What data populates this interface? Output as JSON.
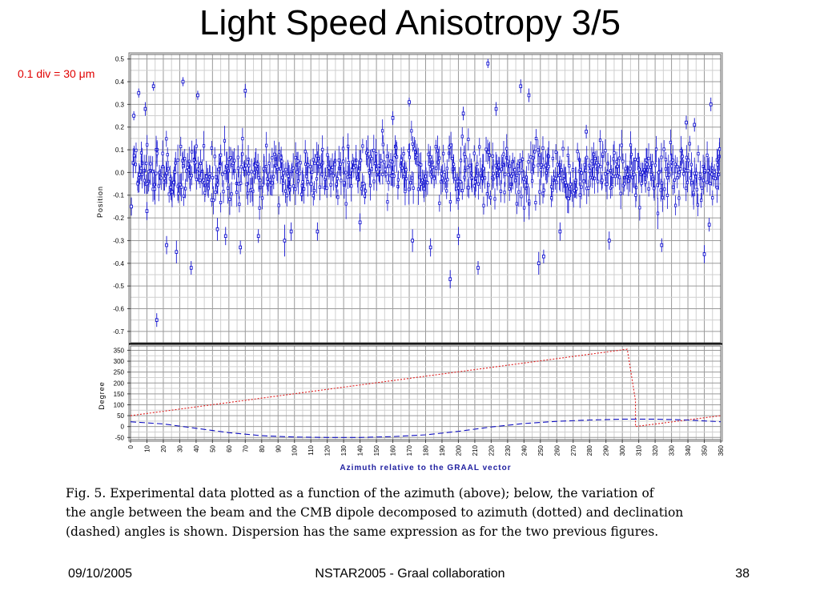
{
  "slide": {
    "title": "Light Speed Anisotropy 3/5",
    "scale_note": "0.1 div = 30 μm",
    "caption_lines": [
      "Fig. 5.    Experimental data plotted as a function of the azimuth (above); below, the variation of",
      "the angle between the beam and the CMB dipole decomposed to azimuth (dotted) and declination",
      "(dashed) angles is shown. Dispersion has the same expression as for the two previous figures."
    ],
    "footer": {
      "date": "09/10/2005",
      "center": "NSTAR2005 - Graal collaboration",
      "page": "38"
    }
  },
  "chart_data": [
    {
      "type": "scatter",
      "ylabel": "Position",
      "xlim": [
        0,
        360
      ],
      "ylim": [
        -0.75,
        0.52
      ],
      "yticks": [
        0.5,
        0.4,
        0.3,
        0.2,
        0.1,
        0.0,
        -0.1,
        -0.2,
        -0.3,
        -0.4,
        -0.5,
        -0.6,
        -0.7
      ],
      "ytick_labels": [
        "0.5",
        "0.4",
        "0.3",
        "0.2",
        "0.1",
        "0.0",
        "-0.1",
        "-0.2",
        "-0.3",
        "-0.4",
        "-0.5",
        "-0.6",
        "-0.7"
      ],
      "grid": true,
      "series_color": "#1010d0",
      "points": [
        {
          "x": 0.5,
          "y": -0.15,
          "err": 0.04
        },
        {
          "x": 2,
          "y": 0.25,
          "err": 0.02
        },
        {
          "x": 5,
          "y": 0.35,
          "err": 0.02
        },
        {
          "x": 9,
          "y": 0.28,
          "err": 0.03
        },
        {
          "x": 10,
          "y": -0.17,
          "err": 0.04
        },
        {
          "x": 14,
          "y": 0.38,
          "err": 0.02
        },
        {
          "x": 16,
          "y": -0.65,
          "err": 0.03
        },
        {
          "x": 22,
          "y": -0.32,
          "err": 0.04
        },
        {
          "x": 28,
          "y": -0.35,
          "err": 0.05
        },
        {
          "x": 32,
          "y": 0.4,
          "err": 0.02
        },
        {
          "x": 37,
          "y": -0.42,
          "err": 0.03
        },
        {
          "x": 41,
          "y": 0.34,
          "err": 0.02
        },
        {
          "x": 53,
          "y": -0.25,
          "err": 0.05
        },
        {
          "x": 58,
          "y": -0.28,
          "err": 0.04
        },
        {
          "x": 67,
          "y": -0.33,
          "err": 0.03
        },
        {
          "x": 70,
          "y": 0.36,
          "err": 0.03
        },
        {
          "x": 78,
          "y": -0.28,
          "err": 0.03
        },
        {
          "x": 94,
          "y": -0.3,
          "err": 0.07
        },
        {
          "x": 98,
          "y": -0.26,
          "err": 0.04
        },
        {
          "x": 114,
          "y": -0.26,
          "err": 0.04
        },
        {
          "x": 140,
          "y": -0.22,
          "err": 0.04
        },
        {
          "x": 160,
          "y": 0.24,
          "err": 0.03
        },
        {
          "x": 170,
          "y": 0.31,
          "err": 0.02
        },
        {
          "x": 172,
          "y": -0.3,
          "err": 0.05
        },
        {
          "x": 183,
          "y": -0.33,
          "err": 0.04
        },
        {
          "x": 195,
          "y": -0.47,
          "err": 0.04
        },
        {
          "x": 200,
          "y": -0.28,
          "err": 0.04
        },
        {
          "x": 203,
          "y": 0.26,
          "err": 0.03
        },
        {
          "x": 212,
          "y": -0.42,
          "err": 0.03
        },
        {
          "x": 218,
          "y": 0.48,
          "err": 0.02
        },
        {
          "x": 223,
          "y": 0.28,
          "err": 0.03
        },
        {
          "x": 238,
          "y": 0.38,
          "err": 0.03
        },
        {
          "x": 243,
          "y": 0.34,
          "err": 0.03
        },
        {
          "x": 249,
          "y": -0.4,
          "err": 0.05
        },
        {
          "x": 252,
          "y": -0.37,
          "err": 0.03
        },
        {
          "x": 262,
          "y": -0.26,
          "err": 0.04
        },
        {
          "x": 278,
          "y": 0.18,
          "err": 0.03
        },
        {
          "x": 292,
          "y": -0.3,
          "err": 0.04
        },
        {
          "x": 324,
          "y": -0.32,
          "err": 0.03
        },
        {
          "x": 339,
          "y": 0.22,
          "err": 0.03
        },
        {
          "x": 344,
          "y": 0.21,
          "err": 0.03
        },
        {
          "x": 350,
          "y": -0.36,
          "err": 0.04
        },
        {
          "x": 353,
          "y": -0.23,
          "err": 0.03
        },
        {
          "x": 354,
          "y": 0.3,
          "err": 0.03
        }
      ],
      "dense_band": {
        "x_step": 1,
        "y_center": 0.0,
        "y_spread": 0.09,
        "err": 0.05
      }
    },
    {
      "type": "line",
      "ylabel": "Degree",
      "xlabel": "Azimuth relative to the GRAAL vector",
      "xlim": [
        0,
        360
      ],
      "ylim": [
        -60,
        370
      ],
      "yticks": [
        350,
        300,
        250,
        200,
        150,
        100,
        50,
        0,
        -50
      ],
      "ytick_labels": [
        "350",
        "300",
        "250",
        "200",
        "150",
        "100",
        "50",
        "0",
        "-50"
      ],
      "xticks": [
        0,
        10,
        20,
        30,
        40,
        50,
        60,
        70,
        80,
        90,
        100,
        110,
        120,
        130,
        140,
        150,
        160,
        170,
        180,
        190,
        200,
        210,
        220,
        230,
        240,
        250,
        260,
        270,
        280,
        290,
        300,
        310,
        320,
        330,
        340,
        350,
        360
      ],
      "xtick_labels": [
        "0",
        "10",
        "20",
        "30",
        "40",
        "50",
        "60",
        "70",
        "80",
        "90",
        "100",
        "110",
        "120",
        "130",
        "140",
        "150",
        "160",
        "170",
        "180",
        "190",
        "200",
        "210",
        "220",
        "230",
        "240",
        "250",
        "260",
        "270",
        "280",
        "290",
        "300",
        "310",
        "320",
        "330",
        "340",
        "350",
        "360"
      ],
      "grid": true,
      "series": [
        {
          "style": "dotted",
          "color": "#e02020",
          "x": [
            0,
            303,
            303,
            308,
            308,
            360
          ],
          "y": [
            50,
            355,
            355,
            120,
            0,
            50
          ]
        },
        {
          "style": "dashed",
          "color": "#1010c0",
          "x": [
            0,
            20,
            40,
            60,
            80,
            100,
            120,
            140,
            160,
            180,
            200,
            220,
            240,
            260,
            280,
            300,
            320,
            340,
            360
          ],
          "y": [
            22,
            12,
            -8,
            -28,
            -42,
            -48,
            -50,
            -50,
            -46,
            -38,
            -22,
            -2,
            14,
            24,
            30,
            34,
            34,
            30,
            22
          ]
        }
      ]
    }
  ]
}
